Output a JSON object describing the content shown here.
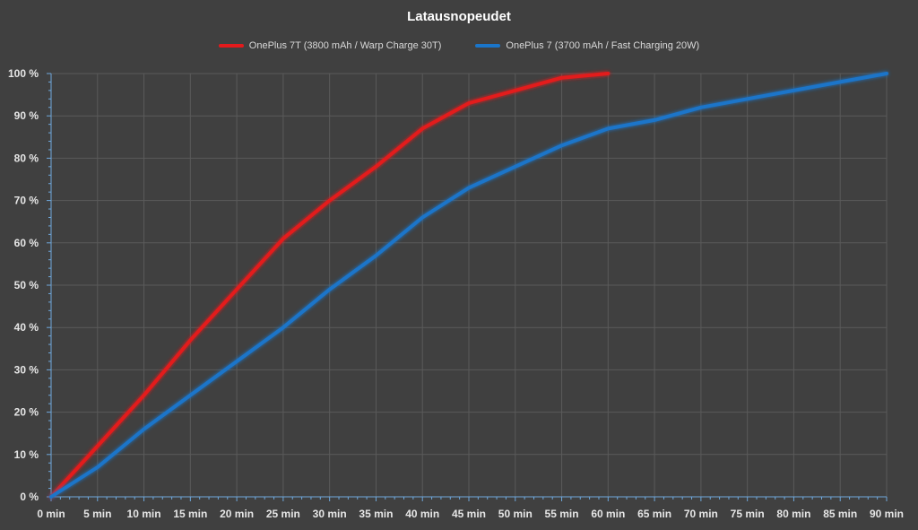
{
  "chart_data": {
    "type": "line",
    "title": "Latausnopeudet",
    "xlabel": "",
    "ylabel": "",
    "x_ticks": [
      "0 min",
      "5 min",
      "10 min",
      "15 min",
      "20 min",
      "25 min",
      "30 min",
      "35 min",
      "40 min",
      "45 min",
      "50 min",
      "55 min",
      "60 min",
      "65 min",
      "70 min",
      "75 min",
      "80 min",
      "85 min",
      "90 min"
    ],
    "y_ticks": [
      "0 %",
      "10 %",
      "20 %",
      "30 %",
      "40 %",
      "50 %",
      "60 %",
      "70 %",
      "80 %",
      "90 %",
      "100 %"
    ],
    "xlim": [
      0,
      90
    ],
    "ylim": [
      0,
      100
    ],
    "grid": true,
    "legend_position": "top-center",
    "series": [
      {
        "name": "OnePlus 7T (3800 mAh / Warp Charge 30T)",
        "color": "#e31a1c",
        "x": [
          0,
          5,
          10,
          15,
          20,
          25,
          30,
          35,
          40,
          45,
          50,
          55,
          60
        ],
        "values": [
          0,
          12,
          24,
          37,
          49,
          61,
          70,
          78,
          87,
          93,
          96,
          99,
          100
        ]
      },
      {
        "name": "OnePlus 7 (3700 mAh / Fast Charging 20W)",
        "color": "#1a75c9",
        "x": [
          0,
          5,
          10,
          15,
          20,
          25,
          30,
          35,
          40,
          45,
          50,
          55,
          60,
          65,
          70,
          75,
          80,
          85,
          90
        ],
        "values": [
          0,
          7,
          16,
          24,
          32,
          40,
          49,
          57,
          66,
          73,
          78,
          83,
          87,
          89,
          92,
          94,
          96,
          98,
          100
        ]
      }
    ]
  }
}
